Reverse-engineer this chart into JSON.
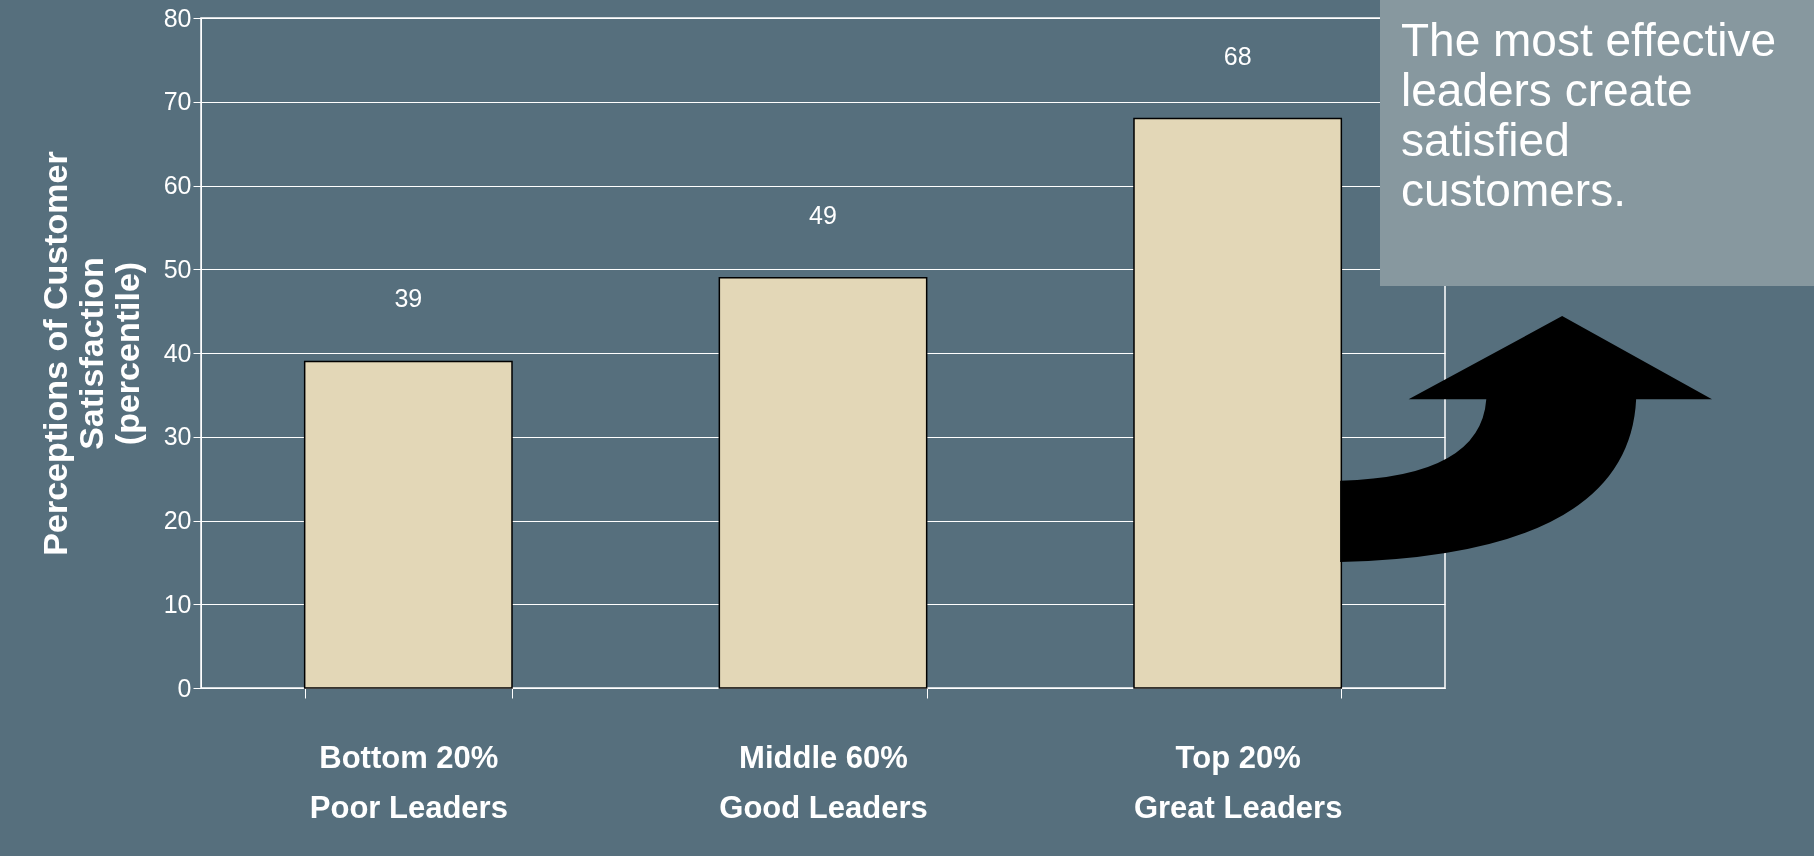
{
  "chart_data": {
    "type": "bar",
    "categories": [
      "Bottom 20%\nPoor Leaders",
      "Middle 60%\nGood Leaders",
      "Top 20%\nGreat Leaders"
    ],
    "values": [
      39,
      49,
      68
    ],
    "color": "#e3d7b7",
    "ylabel": "Perceptions of Customer Satisfaction (percentile)",
    "ylim": [
      0,
      80
    ],
    "yticks": [
      0,
      10,
      20,
      30,
      40,
      50,
      60,
      70,
      80
    ],
    "grid": "y",
    "data_labels": true,
    "annotations": [
      "The most effective leaders create satisfied customers."
    ]
  }
}
